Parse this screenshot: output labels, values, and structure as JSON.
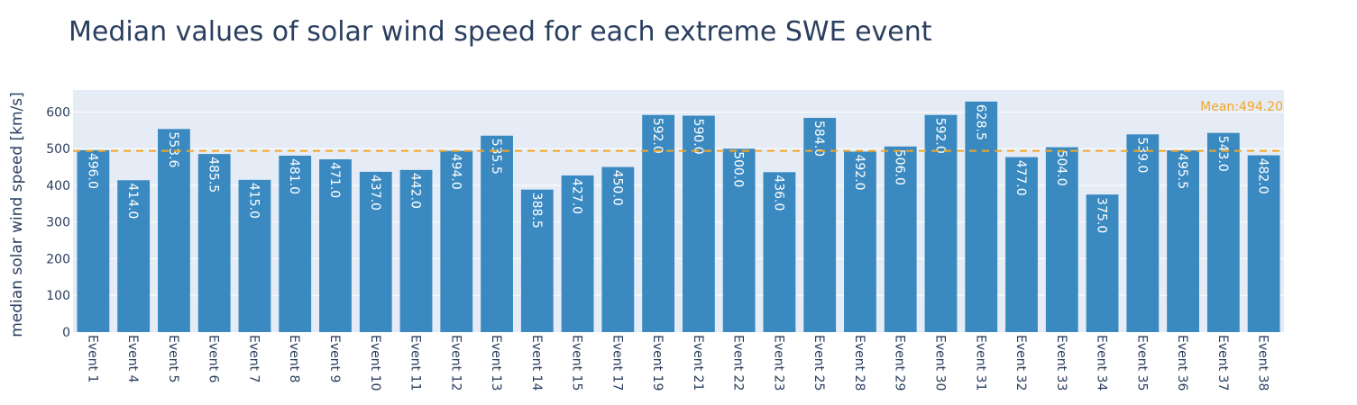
{
  "chart_data": {
    "type": "bar",
    "title": "Median values of solar wind speed for each extreme SWE event",
    "ylabel": "median solar wind speed [km/s]",
    "xlabel": "",
    "ylim": [
      0,
      660
    ],
    "yticks": [
      0,
      100,
      200,
      300,
      400,
      500,
      600
    ],
    "categories": [
      "Event 1",
      "Event 4",
      "Event 5",
      "Event 6",
      "Event 7",
      "Event 8",
      "Event 9",
      "Event 10",
      "Event 11",
      "Event 12",
      "Event 13",
      "Event 14",
      "Event 15",
      "Event 17",
      "Event 19",
      "Event 21",
      "Event 22",
      "Event 23",
      "Event 25",
      "Event 28",
      "Event 29",
      "Event 30",
      "Event 31",
      "Event 32",
      "Event 33",
      "Event 34",
      "Event 35",
      "Event 36",
      "Event 37",
      "Event 38"
    ],
    "values": [
      496.0,
      414.0,
      553.6,
      485.5,
      415.0,
      481.0,
      471.0,
      437.0,
      442.0,
      494.0,
      535.5,
      388.5,
      427.0,
      450.0,
      592.0,
      590.0,
      500.0,
      436.0,
      584.0,
      492.0,
      506.0,
      592.0,
      628.5,
      477.0,
      504.0,
      375.0,
      539.0,
      495.5,
      543.0,
      482.0
    ],
    "value_labels": [
      "496.0",
      "414.0",
      "553.6",
      "485.5",
      "415.0",
      "481.0",
      "471.0",
      "437.0",
      "442.0",
      "494.0",
      "535.5",
      "388.5",
      "427.0",
      "450.0",
      "592.0",
      "590.0",
      "500.0",
      "436.0",
      "584.0",
      "492.0",
      "506.0",
      "592.0",
      "628.5",
      "477.0",
      "504.0",
      "375.0",
      "539.0",
      "495.5",
      "543.0",
      "482.0"
    ],
    "mean_line": {
      "value": 494.2,
      "label": "Mean:494.20",
      "style": "dashed"
    },
    "grid": true,
    "colors": {
      "bar": "#3a89c1",
      "mean": "#f5a623",
      "plot_bg": "#e5ecf6",
      "grid": "#ffffff",
      "text": "#2a3f5f"
    }
  }
}
